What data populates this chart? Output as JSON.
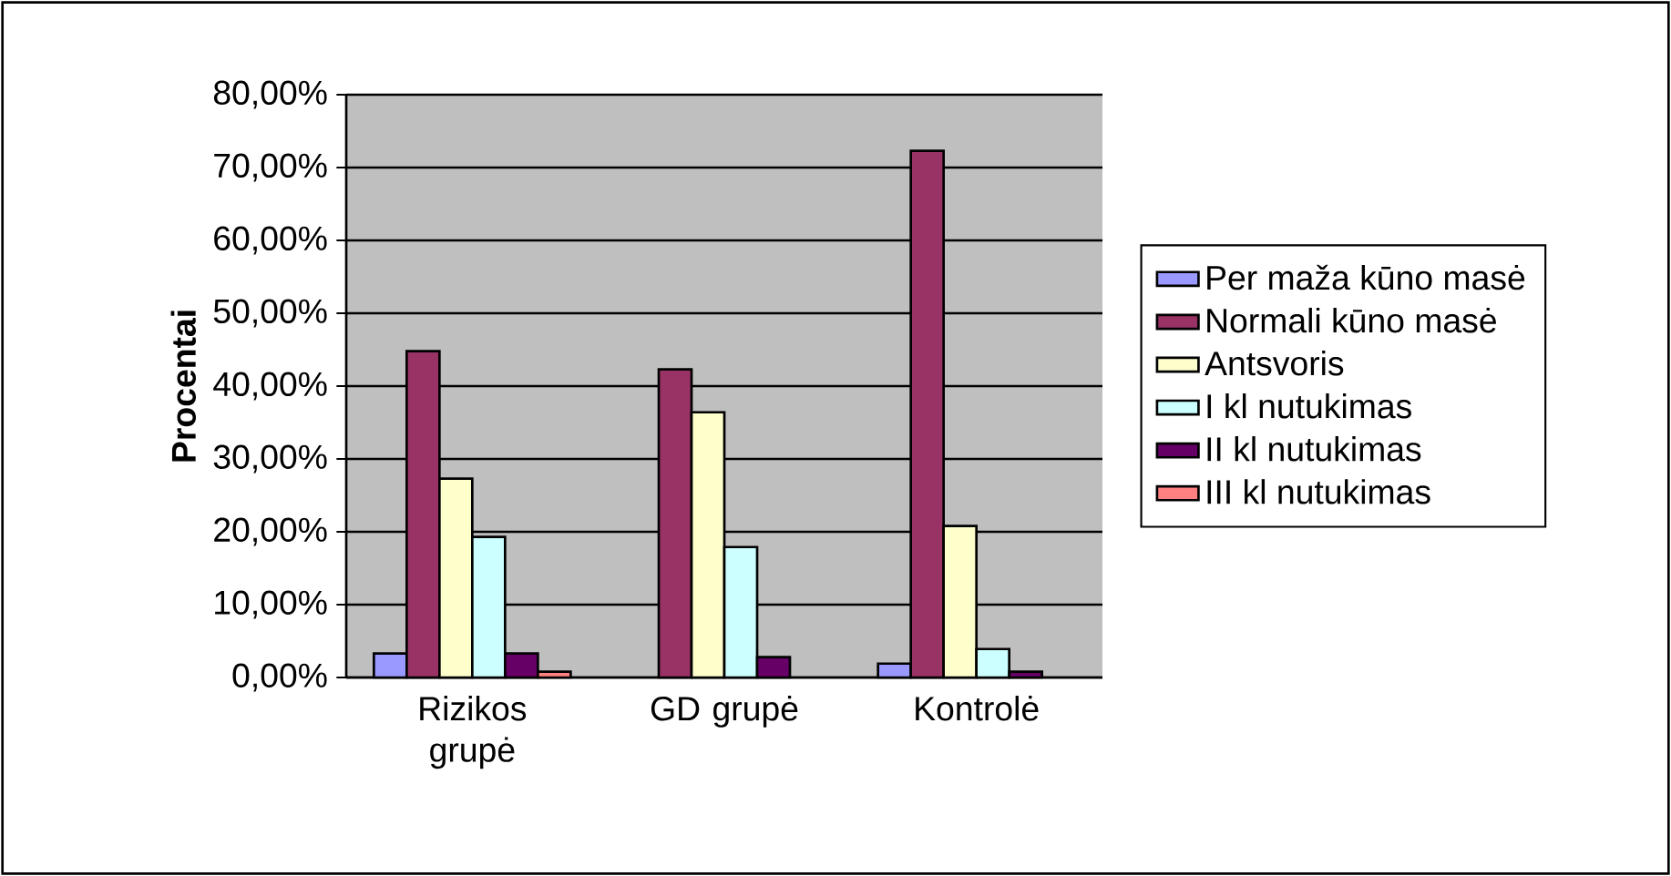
{
  "chart_data": {
    "type": "bar",
    "ylabel": "Procentai",
    "categories": [
      "Rizikos grupė",
      "GD grupė",
      "Kontrolė"
    ],
    "series": [
      {
        "name": "Per maža kūno masė",
        "color": "#9999ff",
        "values": [
          3.3,
          null,
          1.9
        ]
      },
      {
        "name": "Normali kūno masė",
        "color": "#993366",
        "values": [
          44.8,
          42.3,
          72.3
        ]
      },
      {
        "name": "Antsvoris",
        "color": "#ffffcc",
        "values": [
          27.3,
          36.4,
          20.8
        ]
      },
      {
        "name": "I kl nutukimas",
        "color": "#ccffff",
        "values": [
          19.3,
          17.9,
          3.9
        ]
      },
      {
        "name": "II kl nutukimas",
        "color": "#660066",
        "values": [
          3.3,
          2.8,
          0.8
        ]
      },
      {
        "name": "III kl nutukimas",
        "color": "#ff8080",
        "values": [
          0.8,
          null,
          null
        ]
      }
    ],
    "ylim": [
      0,
      80
    ],
    "yticks": [
      {
        "value": 0,
        "label": "0,00%"
      },
      {
        "value": 10,
        "label": "10,00%"
      },
      {
        "value": 20,
        "label": "20,00%"
      },
      {
        "value": 30,
        "label": "30,00%"
      },
      {
        "value": 40,
        "label": "40,00%"
      },
      {
        "value": 50,
        "label": "50,00%"
      },
      {
        "value": 60,
        "label": "60,00%"
      },
      {
        "value": 70,
        "label": "70,00%"
      },
      {
        "value": 80,
        "label": "80,00%"
      }
    ],
    "grid": "y",
    "legend": "right"
  }
}
